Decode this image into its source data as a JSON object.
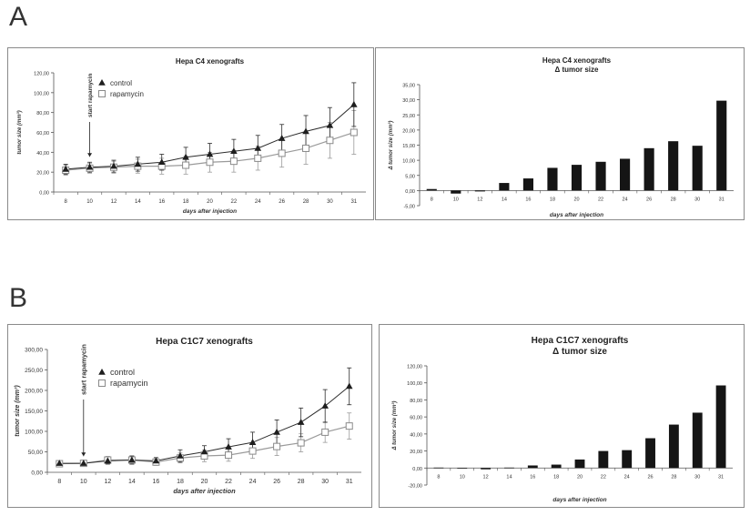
{
  "panels": [
    {
      "letter": "A"
    },
    {
      "letter": "B"
    }
  ],
  "chart_data": [
    {
      "id": "A1",
      "type": "line",
      "title": "Hepa C4 xenografts",
      "xlabel": "days after injection",
      "ylabel": "tumor size (mm³)",
      "categories": [
        "8",
        "10",
        "12",
        "14",
        "16",
        "18",
        "20",
        "22",
        "24",
        "26",
        "28",
        "30",
        "31"
      ],
      "ylim": [
        0,
        120
      ],
      "yticks": [
        0,
        20,
        40,
        60,
        80,
        100,
        120
      ],
      "yticklabels": [
        "0,00",
        "20,00",
        "40,00",
        "60,00",
        "80,00",
        "100,00",
        "120,00"
      ],
      "annotation": "start rapamycin",
      "annotation_category": "10",
      "legend": [
        "control",
        "rapamycin"
      ],
      "series": [
        {
          "name": "control",
          "marker": "triangle",
          "color": "#2b2b2b",
          "values": [
            23,
            25,
            26,
            28,
            30,
            35,
            38,
            41,
            44,
            54,
            61,
            67,
            88
          ],
          "errors": [
            5,
            5,
            6,
            7,
            8,
            10,
            11,
            12,
            13,
            14,
            16,
            18,
            22
          ]
        },
        {
          "name": "rapamycin",
          "marker": "square",
          "color": "#9a9a9a",
          "values": [
            22,
            24,
            25,
            26,
            26,
            27,
            30,
            31,
            34,
            39,
            44,
            52,
            60
          ],
          "errors": [
            5,
            5,
            6,
            7,
            8,
            9,
            10,
            11,
            12,
            14,
            16,
            18,
            22
          ]
        }
      ]
    },
    {
      "id": "A2",
      "type": "bar",
      "title": "Hepa C4 xenografts",
      "subtitle": "Δ tumor size",
      "xlabel": "days after injection",
      "ylabel": "Δ tumor size (mm³)",
      "categories": [
        "8",
        "10",
        "12",
        "14",
        "16",
        "18",
        "20",
        "22",
        "24",
        "26",
        "28",
        "30",
        "31"
      ],
      "values": [
        0.5,
        -1.0,
        -0.3,
        2.5,
        4.0,
        7.5,
        8.5,
        9.5,
        10.5,
        14.0,
        16.3,
        14.8,
        29.7
      ],
      "ylim": [
        -5,
        35
      ],
      "yticks": [
        -5,
        0,
        5,
        10,
        15,
        20,
        25,
        30,
        35
      ],
      "yticklabels": [
        "-5,00",
        "0,00",
        "5,00",
        "10,00",
        "15,00",
        "20,00",
        "25,00",
        "30,00",
        "35,00"
      ]
    },
    {
      "id": "B1",
      "type": "line",
      "title": "Hepa C1C7 xenografts",
      "xlabel": "days after injection",
      "ylabel": "tumor size (mm³)",
      "categories": [
        "8",
        "10",
        "12",
        "14",
        "16",
        "18",
        "20",
        "22",
        "24",
        "26",
        "28",
        "30",
        "31"
      ],
      "ylim": [
        0,
        300
      ],
      "yticks": [
        0,
        50,
        100,
        150,
        200,
        250,
        300
      ],
      "yticklabels": [
        "0,00",
        "50,00",
        "100,00",
        "150,00",
        "200,00",
        "250,00",
        "300,00"
      ],
      "annotation": "start rapamycin",
      "annotation_category": "10",
      "legend": [
        "control",
        "rapamycin"
      ],
      "series": [
        {
          "name": "control",
          "marker": "triangle",
          "color": "#2b2b2b",
          "values": [
            22,
            22,
            28,
            30,
            28,
            40,
            50,
            62,
            73,
            98,
            122,
            162,
            210
          ],
          "errors": [
            4,
            4,
            8,
            10,
            8,
            15,
            15,
            20,
            25,
            30,
            35,
            40,
            45
          ]
        },
        {
          "name": "rapamycin",
          "marker": "square",
          "color": "#9a9a9a",
          "values": [
            21,
            22,
            30,
            30,
            25,
            35,
            40,
            42,
            52,
            63,
            72,
            98,
            113
          ],
          "errors": [
            4,
            4,
            9,
            10,
            8,
            12,
            14,
            15,
            18,
            22,
            22,
            25,
            32
          ]
        }
      ]
    },
    {
      "id": "B2",
      "type": "bar",
      "title": "Hepa C1C7 xenografts",
      "subtitle": "Δ tumor size",
      "xlabel": "days after injection",
      "ylabel": "Δ tumor size (mm³)",
      "categories": [
        "8",
        "10",
        "12",
        "14",
        "16",
        "18",
        "20",
        "22",
        "24",
        "26",
        "28",
        "30",
        "31"
      ],
      "values": [
        0.5,
        0.3,
        -1.5,
        0.5,
        3.0,
        4.0,
        10.0,
        20.0,
        21.0,
        35.0,
        51.0,
        65.0,
        97.0
      ],
      "ylim": [
        -20,
        120
      ],
      "yticks": [
        -20,
        0,
        20,
        40,
        60,
        80,
        100,
        120
      ],
      "yticklabels": [
        "-20,00",
        "0,00",
        "20,00",
        "40,00",
        "60,00",
        "80,00",
        "100,00",
        "120,00"
      ]
    }
  ]
}
